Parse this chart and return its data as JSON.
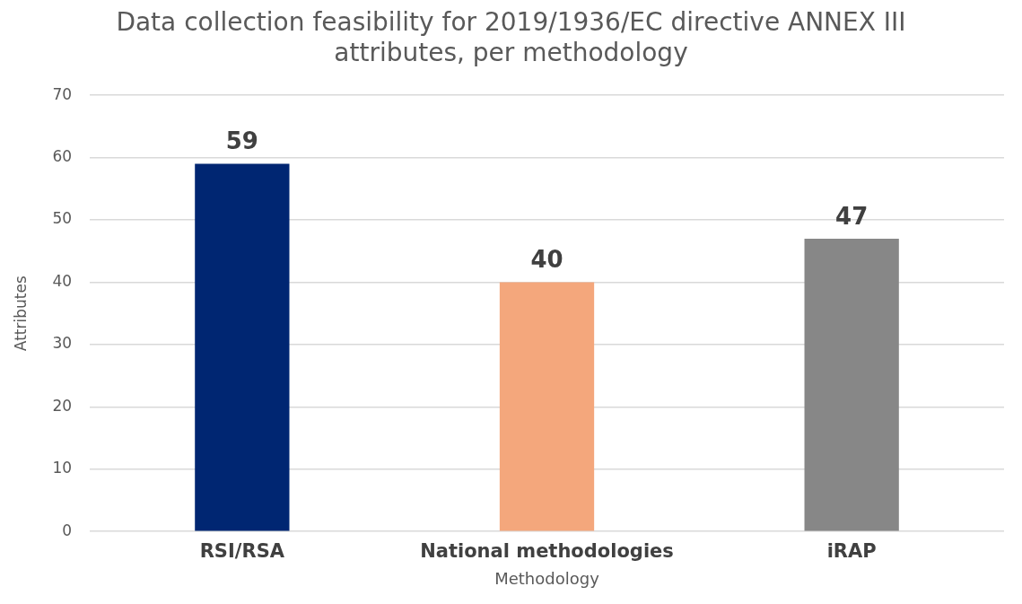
{
  "chart_data": {
    "type": "bar",
    "title": "Data collection feasibility for 2019/1936/EC directive ANNEX III attributes, per methodology",
    "xlabel": "Methodology",
    "ylabel": "Attributes",
    "categories": [
      "RSI/RSA",
      "National methodologies",
      "iRAP"
    ],
    "values": [
      59,
      40,
      47
    ],
    "colors": [
      "#002672",
      "#f4a77c",
      "#878787"
    ],
    "ylim": [
      0,
      70
    ],
    "yticks": [
      0,
      10,
      20,
      30,
      40,
      50,
      60,
      70
    ],
    "grid": "y",
    "data_labels": true,
    "legend": false
  }
}
